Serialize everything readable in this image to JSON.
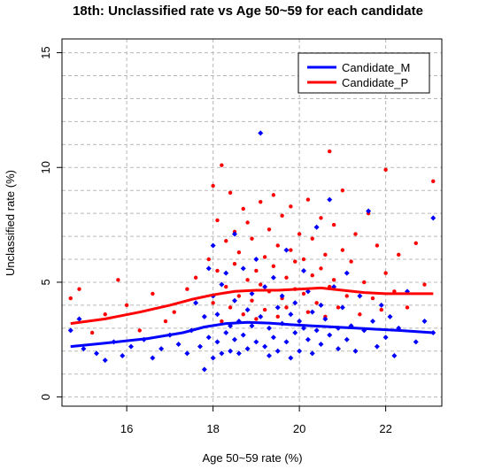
{
  "chart_data": {
    "type": "scatter",
    "title": "18th: Unclassified rate vs Age 50~59 for each candidate",
    "xlabel": "Age 50~59 rate (%)",
    "ylabel": "Unclassified rate (%)",
    "xlim": [
      14.5,
      23.3
    ],
    "ylim": [
      -0.4,
      15.6
    ],
    "x_ticks": [
      16,
      18,
      20,
      22
    ],
    "y_ticks": [
      0,
      5,
      10,
      15
    ],
    "y_tick_labels": [
      "0",
      "5",
      "10",
      "15"
    ],
    "grid": true,
    "legend_position": "top-right",
    "series": [
      {
        "name": "Candidate_M",
        "color": "#0000ff",
        "marker": "diamond",
        "points": [
          [
            14.7,
            2.9
          ],
          [
            14.9,
            3.4
          ],
          [
            15.0,
            2.1
          ],
          [
            15.3,
            1.9
          ],
          [
            15.5,
            1.6
          ],
          [
            15.7,
            2.4
          ],
          [
            15.9,
            1.8
          ],
          [
            16.1,
            2.2
          ],
          [
            16.4,
            2.5
          ],
          [
            16.6,
            1.7
          ],
          [
            16.8,
            2.1
          ],
          [
            17.0,
            2.7
          ],
          [
            17.2,
            2.3
          ],
          [
            17.4,
            1.9
          ],
          [
            17.5,
            2.9
          ],
          [
            17.6,
            4.1
          ],
          [
            17.7,
            2.2
          ],
          [
            17.8,
            1.2
          ],
          [
            17.8,
            3.5
          ],
          [
            17.9,
            2.6
          ],
          [
            17.9,
            5.6
          ],
          [
            18.0,
            1.7
          ],
          [
            18.0,
            4.4
          ],
          [
            18.0,
            6.6
          ],
          [
            18.1,
            2.4
          ],
          [
            18.1,
            3.6
          ],
          [
            18.2,
            1.9
          ],
          [
            18.2,
            4.9
          ],
          [
            18.3,
            2.8
          ],
          [
            18.3,
            5.4
          ],
          [
            18.4,
            3.1
          ],
          [
            18.4,
            2.0
          ],
          [
            18.5,
            4.2
          ],
          [
            18.5,
            2.5
          ],
          [
            18.5,
            7.1
          ],
          [
            18.6,
            3.3
          ],
          [
            18.6,
            1.9
          ],
          [
            18.7,
            2.7
          ],
          [
            18.7,
            5.6
          ],
          [
            18.8,
            3.8
          ],
          [
            18.8,
            2.1
          ],
          [
            18.9,
            4.5
          ],
          [
            18.9,
            3.1
          ],
          [
            19.0,
            2.4
          ],
          [
            19.0,
            6.0
          ],
          [
            19.1,
            11.5
          ],
          [
            19.1,
            3.5
          ],
          [
            19.2,
            2.2
          ],
          [
            19.2,
            4.8
          ],
          [
            19.3,
            3.0
          ],
          [
            19.3,
            1.8
          ],
          [
            19.4,
            5.2
          ],
          [
            19.4,
            2.6
          ],
          [
            19.5,
            3.9
          ],
          [
            19.5,
            2.0
          ],
          [
            19.6,
            4.4
          ],
          [
            19.6,
            3.2
          ],
          [
            19.7,
            2.4
          ],
          [
            19.7,
            6.4
          ],
          [
            19.8,
            3.6
          ],
          [
            19.8,
            1.7
          ],
          [
            19.9,
            4.1
          ],
          [
            19.9,
            2.8
          ],
          [
            20.0,
            3.3
          ],
          [
            20.0,
            2.0
          ],
          [
            20.1,
            5.5
          ],
          [
            20.1,
            3.0
          ],
          [
            20.2,
            2.5
          ],
          [
            20.2,
            4.6
          ],
          [
            20.3,
            3.7
          ],
          [
            20.3,
            1.9
          ],
          [
            20.4,
            7.4
          ],
          [
            20.4,
            2.9
          ],
          [
            20.5,
            4.0
          ],
          [
            20.5,
            2.3
          ],
          [
            20.6,
            3.4
          ],
          [
            20.7,
            8.6
          ],
          [
            20.7,
            2.7
          ],
          [
            20.8,
            4.8
          ],
          [
            20.9,
            3.0
          ],
          [
            20.9,
            2.1
          ],
          [
            21.0,
            3.9
          ],
          [
            21.1,
            2.5
          ],
          [
            21.1,
            5.4
          ],
          [
            21.2,
            3.1
          ],
          [
            21.3,
            2.0
          ],
          [
            21.4,
            4.4
          ],
          [
            21.5,
            2.9
          ],
          [
            21.6,
            8.1
          ],
          [
            21.7,
            3.3
          ],
          [
            21.8,
            2.2
          ],
          [
            21.9,
            4.0
          ],
          [
            22.0,
            2.6
          ],
          [
            22.1,
            3.5
          ],
          [
            22.2,
            1.8
          ],
          [
            22.3,
            3.0
          ],
          [
            22.5,
            4.6
          ],
          [
            22.7,
            2.4
          ],
          [
            22.9,
            3.3
          ],
          [
            23.1,
            2.8
          ],
          [
            23.1,
            7.8
          ]
        ]
      },
      {
        "name": "Candidate_P",
        "color": "#ff0000",
        "marker": "circle",
        "points": [
          [
            14.7,
            4.3
          ],
          [
            14.9,
            4.7
          ],
          [
            15.2,
            2.8
          ],
          [
            15.5,
            3.6
          ],
          [
            15.8,
            5.1
          ],
          [
            16.0,
            4.0
          ],
          [
            16.3,
            2.9
          ],
          [
            16.6,
            4.5
          ],
          [
            16.9,
            3.3
          ],
          [
            17.1,
            3.7
          ],
          [
            17.4,
            4.7
          ],
          [
            17.6,
            5.2
          ],
          [
            17.8,
            3.5
          ],
          [
            17.9,
            6.0
          ],
          [
            18.0,
            9.2
          ],
          [
            18.0,
            4.1
          ],
          [
            18.1,
            7.7
          ],
          [
            18.1,
            5.5
          ],
          [
            18.2,
            10.1
          ],
          [
            18.2,
            3.3
          ],
          [
            18.3,
            6.8
          ],
          [
            18.3,
            4.8
          ],
          [
            18.4,
            8.9
          ],
          [
            18.4,
            3.9
          ],
          [
            18.5,
            5.8
          ],
          [
            18.5,
            7.2
          ],
          [
            18.6,
            4.4
          ],
          [
            18.6,
            6.3
          ],
          [
            18.7,
            8.2
          ],
          [
            18.7,
            3.6
          ],
          [
            18.8,
            5.1
          ],
          [
            18.8,
            7.6
          ],
          [
            18.9,
            4.2
          ],
          [
            18.9,
            6.9
          ],
          [
            19.0,
            5.5
          ],
          [
            19.0,
            3.4
          ],
          [
            19.1,
            8.5
          ],
          [
            19.1,
            4.9
          ],
          [
            19.2,
            6.1
          ],
          [
            19.2,
            3.8
          ],
          [
            19.3,
            7.3
          ],
          [
            19.3,
            4.6
          ],
          [
            19.4,
            5.7
          ],
          [
            19.4,
            8.8
          ],
          [
            19.5,
            3.5
          ],
          [
            19.5,
            6.6
          ],
          [
            19.6,
            4.3
          ],
          [
            19.6,
            7.9
          ],
          [
            19.7,
            5.2
          ],
          [
            19.7,
            3.9
          ],
          [
            19.8,
            6.4
          ],
          [
            19.8,
            8.3
          ],
          [
            19.9,
            4.7
          ],
          [
            19.9,
            5.9
          ],
          [
            20.0,
            3.3
          ],
          [
            20.0,
            7.1
          ],
          [
            20.1,
            4.5
          ],
          [
            20.1,
            6.0
          ],
          [
            20.2,
            8.6
          ],
          [
            20.2,
            3.7
          ],
          [
            20.3,
            5.3
          ],
          [
            20.3,
            6.9
          ],
          [
            20.4,
            4.1
          ],
          [
            20.5,
            7.8
          ],
          [
            20.5,
            5.6
          ],
          [
            20.6,
            3.5
          ],
          [
            20.6,
            6.2
          ],
          [
            20.7,
            10.7
          ],
          [
            20.7,
            4.8
          ],
          [
            20.8,
            7.5
          ],
          [
            20.8,
            5.1
          ],
          [
            20.9,
            3.9
          ],
          [
            21.0,
            6.4
          ],
          [
            21.0,
            9.0
          ],
          [
            21.1,
            4.4
          ],
          [
            21.2,
            5.9
          ],
          [
            21.3,
            7.1
          ],
          [
            21.4,
            3.6
          ],
          [
            21.5,
            5.0
          ],
          [
            21.6,
            8.0
          ],
          [
            21.7,
            4.3
          ],
          [
            21.8,
            6.6
          ],
          [
            21.9,
            3.8
          ],
          [
            22.0,
            5.4
          ],
          [
            22.0,
            9.9
          ],
          [
            22.2,
            4.6
          ],
          [
            22.3,
            6.2
          ],
          [
            22.5,
            3.9
          ],
          [
            22.7,
            6.7
          ],
          [
            22.9,
            4.9
          ],
          [
            23.1,
            9.4
          ]
        ]
      }
    ],
    "trend_lines": [
      {
        "series": "Candidate_M",
        "color": "#0000ff",
        "points": [
          [
            14.7,
            2.2
          ],
          [
            15.5,
            2.35
          ],
          [
            16.5,
            2.55
          ],
          [
            17.3,
            2.8
          ],
          [
            17.8,
            3.05
          ],
          [
            18.3,
            3.2
          ],
          [
            18.8,
            3.25
          ],
          [
            19.3,
            3.22
          ],
          [
            19.8,
            3.15
          ],
          [
            20.3,
            3.1
          ],
          [
            20.8,
            3.05
          ],
          [
            21.3,
            3.0
          ],
          [
            21.8,
            2.95
          ],
          [
            22.3,
            2.9
          ],
          [
            23.1,
            2.8
          ]
        ]
      },
      {
        "series": "Candidate_P",
        "color": "#ff0000",
        "points": [
          [
            14.7,
            3.2
          ],
          [
            15.5,
            3.4
          ],
          [
            16.3,
            3.7
          ],
          [
            17.0,
            4.0
          ],
          [
            17.5,
            4.25
          ],
          [
            18.0,
            4.45
          ],
          [
            18.5,
            4.6
          ],
          [
            19.0,
            4.65
          ],
          [
            19.5,
            4.65
          ],
          [
            20.0,
            4.7
          ],
          [
            20.5,
            4.75
          ],
          [
            21.0,
            4.65
          ],
          [
            21.5,
            4.55
          ],
          [
            22.0,
            4.5
          ],
          [
            23.1,
            4.5
          ]
        ]
      }
    ]
  }
}
